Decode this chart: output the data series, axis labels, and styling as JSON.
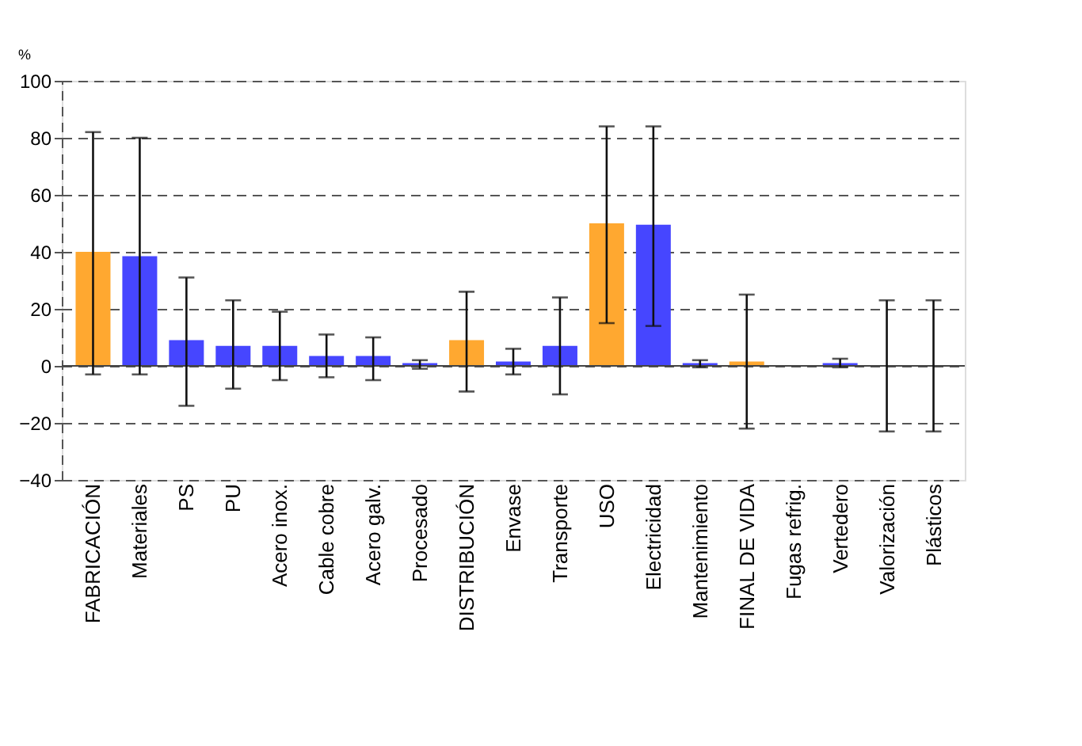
{
  "chart_data": {
    "type": "bar",
    "ylabel": "%",
    "categories": [
      "FABRICACIÓN",
      "Materiales",
      "PS",
      "PU",
      "Acero inox.",
      "Cable cobre",
      "Acero galv.",
      "Procesado",
      "DISTRIBUCIÓN",
      "Envase",
      "Transporte",
      "USO",
      "Electricidad",
      "Mantenimiento",
      "FINAL DE VIDA",
      "Fugas refrig.",
      "Vertedero",
      "Valorización",
      "Plásticos"
    ],
    "values": [
      40,
      38.5,
      9,
      7,
      7,
      3.5,
      3.5,
      1,
      9,
      1.5,
      7,
      50,
      49.5,
      1,
      1.5,
      null,
      1,
      0,
      0
    ],
    "colors": [
      "#ffa830",
      "#4646ff",
      "#4646ff",
      "#4646ff",
      "#4646ff",
      "#4646ff",
      "#4646ff",
      "#4646ff",
      "#ffa830",
      "#4646ff",
      "#4646ff",
      "#ffa830",
      "#4646ff",
      "#4646ff",
      "#ffa830",
      "#4646ff",
      "#4646ff",
      "#4646ff",
      "#4646ff"
    ],
    "errors": [
      [
        -3,
        82
      ],
      [
        -3,
        80
      ],
      [
        -14,
        31
      ],
      [
        -8,
        23
      ],
      [
        -5,
        19
      ],
      [
        -4,
        11
      ],
      [
        -5,
        10
      ],
      [
        -1,
        2
      ],
      [
        -9,
        26
      ],
      [
        -3,
        6
      ],
      [
        -10,
        24
      ],
      [
        15,
        84
      ],
      [
        14,
        84
      ],
      [
        -0.5,
        2
      ],
      [
        -22,
        25
      ],
      null,
      [
        -0.5,
        2.5
      ],
      [
        -23,
        23
      ],
      [
        -23,
        23
      ]
    ],
    "ylim": [
      -40,
      100
    ],
    "yticks": [
      -40,
      -20,
      0,
      20,
      40,
      60,
      80,
      100
    ],
    "grid": "y"
  }
}
